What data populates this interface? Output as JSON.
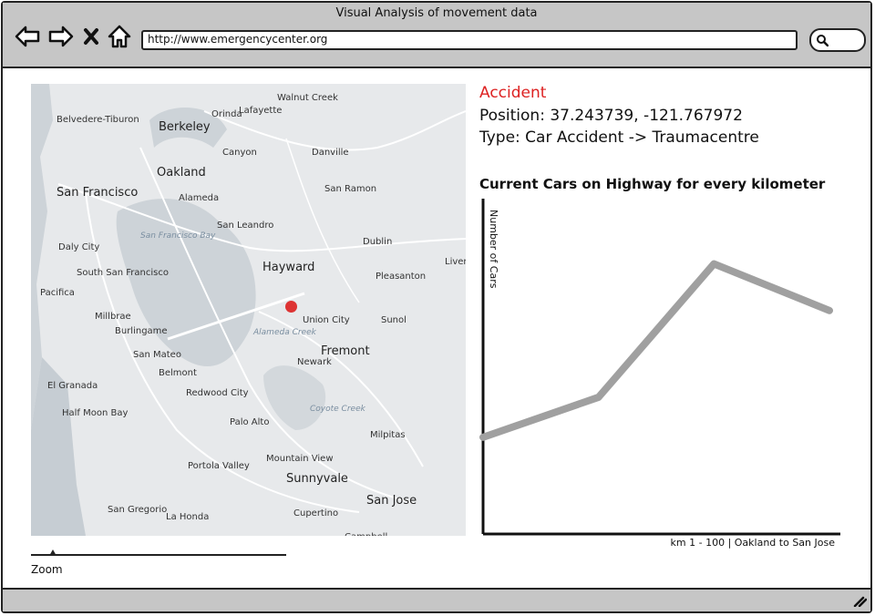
{
  "window": {
    "title": "Visual Analysis of movement data"
  },
  "browser": {
    "url": "http://www.emergencycenter.org",
    "back_icon": "arrow-left-icon",
    "forward_icon": "arrow-right-icon",
    "stop_icon": "close-icon",
    "home_icon": "home-icon",
    "search_icon": "search-icon"
  },
  "map": {
    "labels": [
      "Walnut Creek",
      "Belvedere-Tiburon",
      "Orinda",
      "Lafayette",
      "Berkeley",
      "Canyon",
      "Danville",
      "Oakland",
      "Alameda",
      "San Ramon",
      "San Francisco",
      "San Leandro",
      "San Francisco Bay",
      "Dublin",
      "Daly City",
      "Hayward",
      "Livermore",
      "South San Francisco",
      "Pleasanton",
      "Pacifica",
      "Millbrae",
      "Burlingame",
      "Union City",
      "Sunol",
      "San Mateo",
      "Fremont",
      "Newark",
      "Belmont",
      "El Granada",
      "Redwood City",
      "Half Moon Bay",
      "Palo Alto",
      "Milpitas",
      "Mountain View",
      "Portola Valley",
      "Sunnyvale",
      "San Gregorio",
      "La Honda",
      "San Jose",
      "Cupertino",
      "Campbell",
      "Alameda Creek",
      "Coyote Creek"
    ],
    "pin_color": "#d33"
  },
  "zoom": {
    "label": "Zoom",
    "level": 0.07
  },
  "incident": {
    "title": "Accident",
    "position": "Position: 37.243739, -121.767972",
    "type": "Type: Car Accident -> Traumacentre"
  },
  "chart_data": {
    "type": "line",
    "title": "Current Cars on Highway for every kilometer",
    "ylabel": "Number of Cars",
    "xlabel": "km 1 - 100 | Oakland to San Jose",
    "x": [
      0,
      1,
      2,
      3
    ],
    "values": [
      0.29,
      0.41,
      0.81,
      0.67
    ],
    "ylim": [
      0,
      1
    ],
    "color": "#a0a0a0"
  }
}
